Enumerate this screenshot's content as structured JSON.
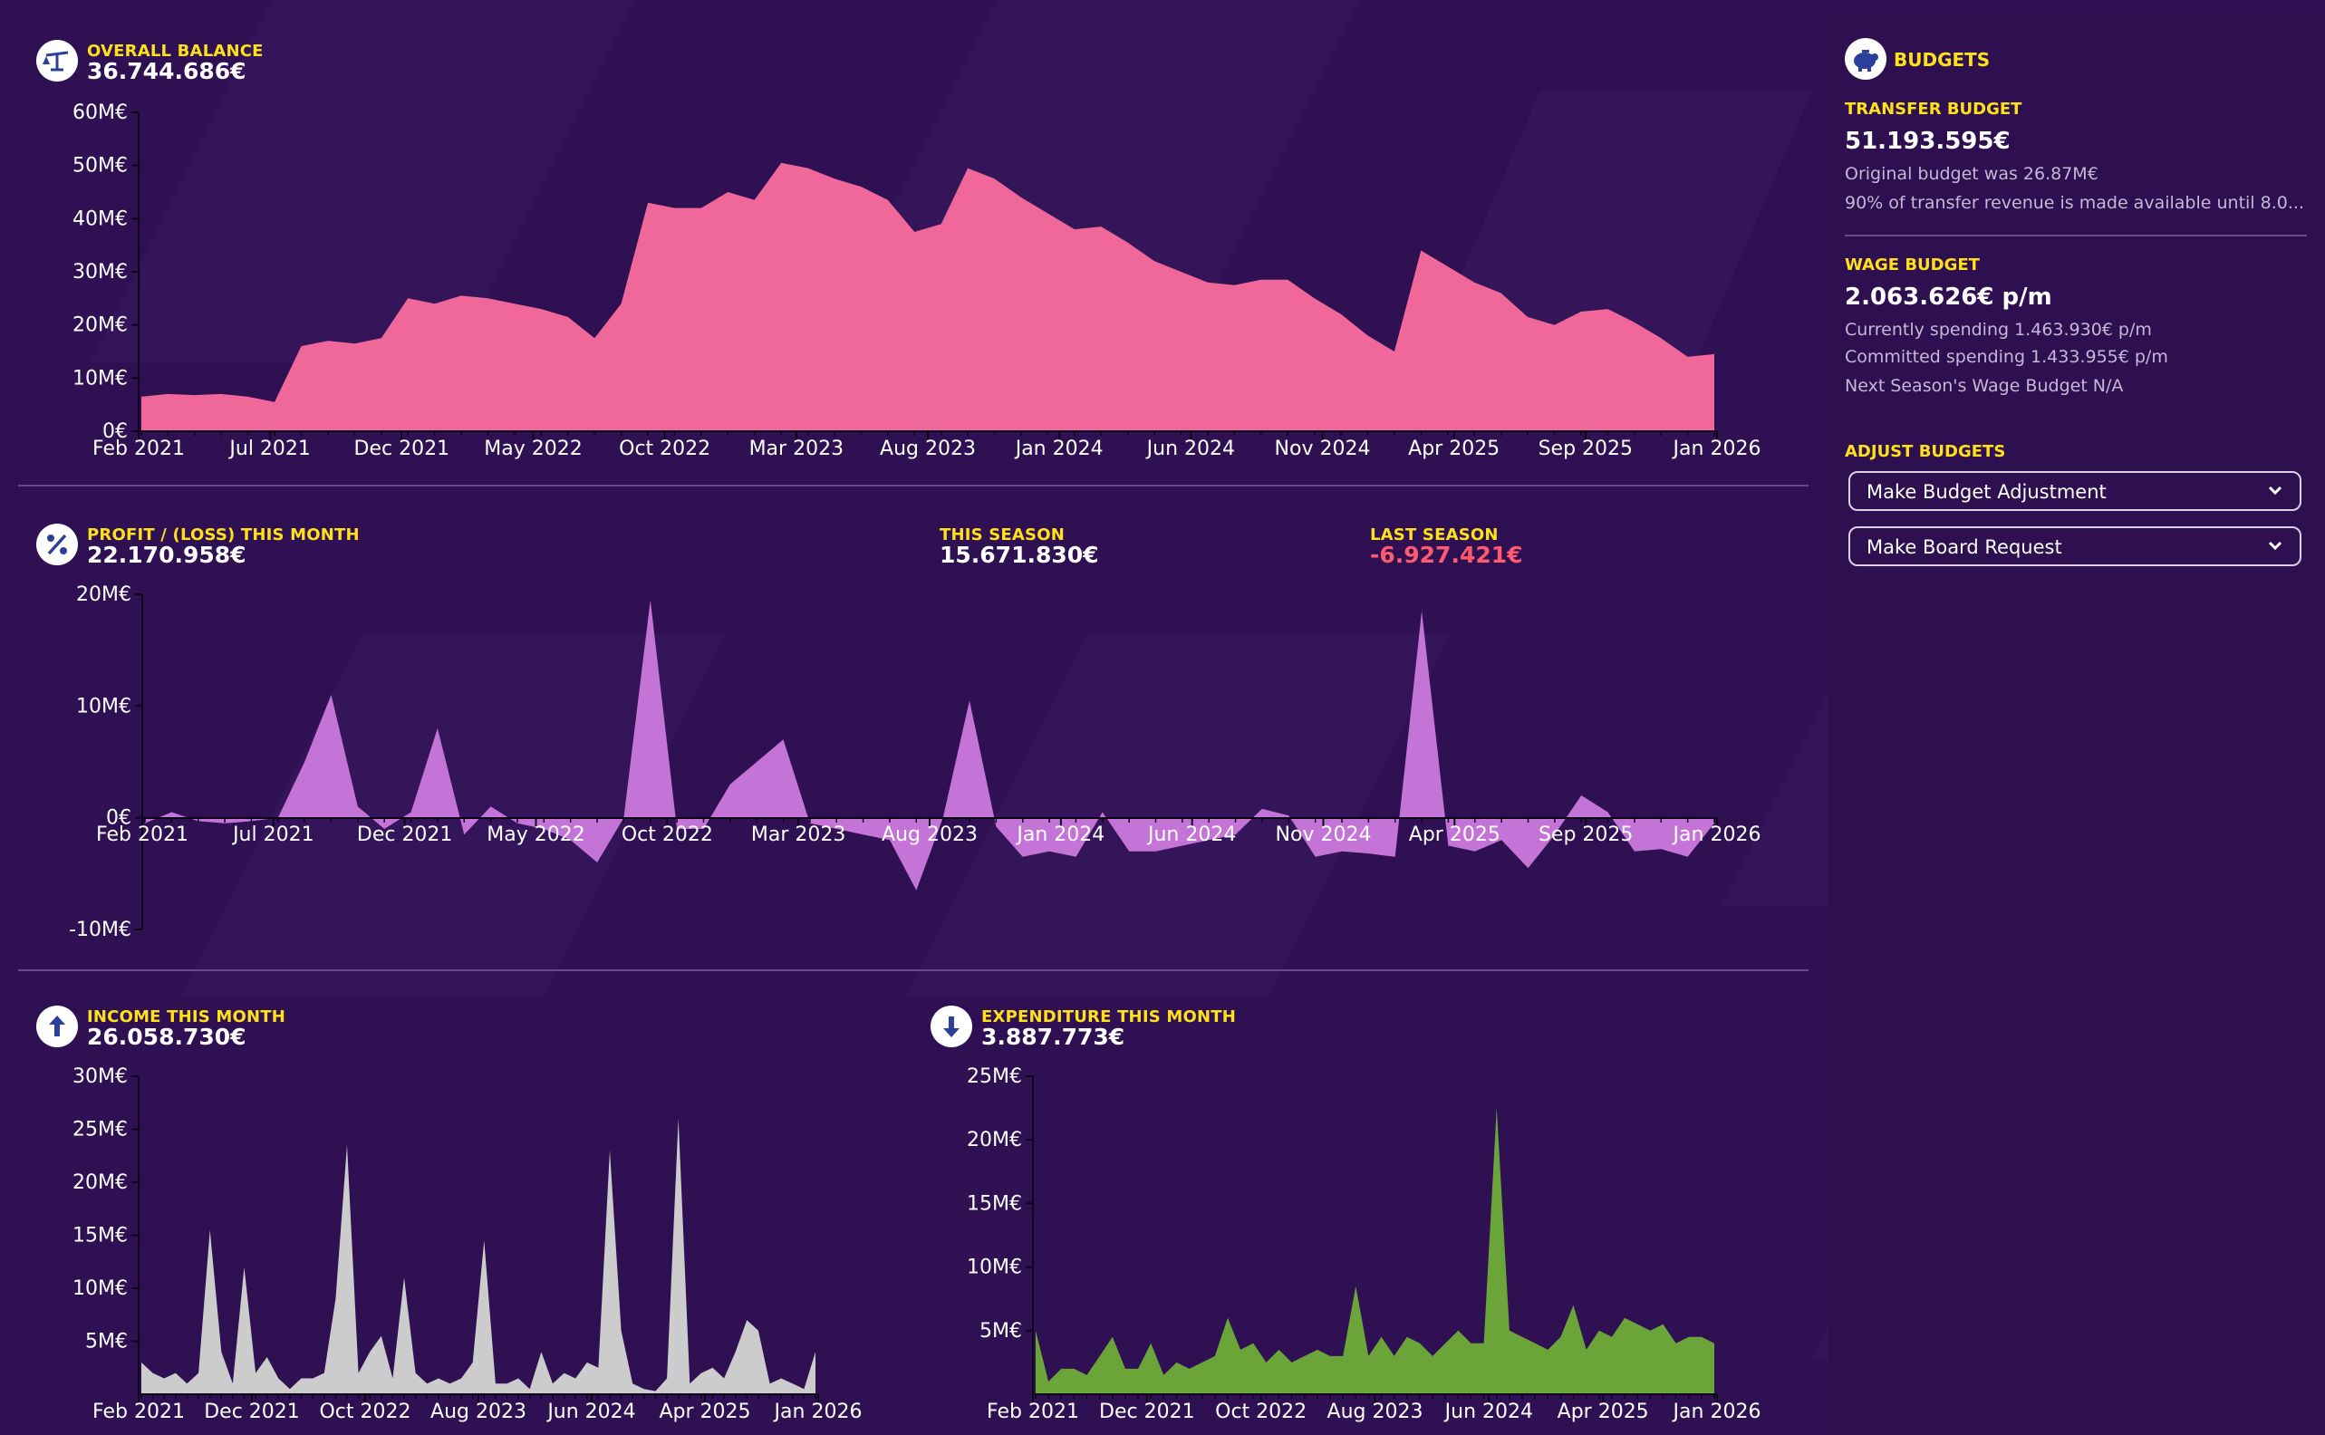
{
  "colors": {
    "background": "#2f1153",
    "label_yellow": "#ffe11a",
    "negative_red": "#ff5a6e",
    "balance_fill": "#f0679a",
    "profit_fill": "#c474d6",
    "income_fill": "#cccccc",
    "expenditure_fill": "#6ba53a"
  },
  "balance": {
    "label": "OVERALL BALANCE",
    "value": "36.744.686€",
    "icon": "balance-scale-icon"
  },
  "profit": {
    "label": "PROFIT / (LOSS) THIS MONTH",
    "value": "22.170.958€",
    "icon": "percent-icon",
    "this_season_label": "THIS SEASON",
    "this_season_value": "15.671.830€",
    "last_season_label": "LAST SEASON",
    "last_season_value": "-6.927.421€"
  },
  "income": {
    "label": "INCOME THIS MONTH",
    "value": "26.058.730€",
    "icon": "arrow-up-icon"
  },
  "expenditure": {
    "label": "EXPENDITURE THIS MONTH",
    "value": "3.887.773€",
    "icon": "arrow-down-icon"
  },
  "budgets": {
    "title": "BUDGETS",
    "icon": "piggy-bank-icon",
    "transfer_label": "TRANSFER BUDGET",
    "transfer_value": "51.193.595€",
    "transfer_original": "Original budget was 26.87M€",
    "transfer_note": "90% of transfer revenue is made available until 8.0...",
    "wage_label": "WAGE BUDGET",
    "wage_value": "2.063.626€ p/m",
    "wage_current": "Currently spending 1.463.930€ p/m",
    "wage_committed": "Committed spending 1.433.955€ p/m",
    "wage_next": "Next Season's Wage Budget N/A",
    "adjust_label": "ADJUST BUDGETS",
    "adjust_button": "Make Budget Adjustment",
    "board_button": "Make Board Request"
  },
  "chart_data": [
    {
      "id": "balance",
      "type": "area",
      "title": "OVERALL BALANCE",
      "xlabel": "",
      "ylabel": "",
      "x_ticks": [
        "Feb 2021",
        "Jul 2021",
        "Dec 2021",
        "May 2022",
        "Oct 2022",
        "Mar 2023",
        "Aug 2023",
        "Jan 2024",
        "Jun 2024",
        "Nov 2024",
        "Apr 2025",
        "Sep 2025",
        "Jan 2026"
      ],
      "y_ticks": [
        "0€",
        "10M€",
        "20M€",
        "30M€",
        "40M€",
        "50M€",
        "60M€"
      ],
      "ylim": [
        0,
        60
      ],
      "unit": "M€",
      "x_start": "Feb 2021",
      "x_end": "Jan 2026",
      "values": [
        6.5,
        7,
        6.8,
        7,
        6.5,
        5.5,
        16,
        17,
        16.5,
        17.5,
        25,
        24,
        25.5,
        25,
        24,
        23,
        21.5,
        17.5,
        24,
        43,
        42,
        42,
        45,
        43.5,
        50.5,
        49.5,
        47.5,
        46,
        43.5,
        37.5,
        39,
        49.5,
        47.5,
        44,
        41,
        38,
        38.5,
        35.5,
        32,
        30,
        28,
        27.5,
        28.5,
        28.5,
        25,
        22,
        18,
        15,
        34,
        31,
        28,
        26,
        21.5,
        20,
        22.5,
        23,
        20.5,
        17.5,
        14,
        14.5
      ]
    },
    {
      "id": "profit",
      "type": "area",
      "title": "PROFIT / (LOSS) THIS MONTH",
      "xlabel": "",
      "ylabel": "",
      "x_ticks": [
        "Feb 2021",
        "Jul 2021",
        "Dec 2021",
        "May 2022",
        "Oct 2022",
        "Mar 2023",
        "Aug 2023",
        "Jan 2024",
        "Jun 2024",
        "Nov 2024",
        "Apr 2025",
        "Sep 2025",
        "Jan 2026"
      ],
      "y_ticks": [
        "-10M€",
        "0€",
        "10M€",
        "20M€"
      ],
      "ylim": [
        -10,
        20
      ],
      "unit": "M€",
      "x_start": "Feb 2021",
      "x_end": "Jan 2026",
      "values": [
        -0.5,
        0.5,
        -0.3,
        -0.5,
        -0.3,
        0,
        5,
        11,
        1,
        -1,
        0.5,
        8,
        -1.5,
        1,
        -0.5,
        -1,
        -2,
        -4,
        0,
        19.5,
        -1,
        -1,
        3,
        5,
        7,
        -0.5,
        -1,
        -1.5,
        -2,
        -6.5,
        0,
        10.5,
        -0.8,
        -3.5,
        -3,
        -3.5,
        0.5,
        -3,
        -3,
        -2.5,
        -2,
        -1.5,
        0.8,
        0.2,
        -3.5,
        -3,
        -3.2,
        -3.5,
        18.5,
        -2.5,
        -3,
        -2,
        -4.5,
        -1.5,
        2,
        0.5,
        -3,
        -2.8,
        -3.5,
        -0.5
      ]
    },
    {
      "id": "income",
      "type": "area",
      "title": "INCOME THIS MONTH",
      "xlabel": "",
      "ylabel": "",
      "x_ticks": [
        "Feb 2021",
        "Dec 2021",
        "Oct 2022",
        "Aug 2023",
        "Jun 2024",
        "Apr 2025",
        "Jan 2026"
      ],
      "y_ticks": [
        "5M€",
        "10M€",
        "15M€",
        "20M€",
        "25M€",
        "30M€"
      ],
      "ylim": [
        0,
        30
      ],
      "unit": "M€",
      "x_start": "Feb 2021",
      "x_end": "Jan 2026",
      "values": [
        3,
        2,
        1.5,
        2,
        1,
        2,
        15.5,
        4,
        1,
        12,
        2,
        3.5,
        1.5,
        0.5,
        1.5,
        1.5,
        2,
        9,
        23.5,
        2,
        4,
        5.5,
        1.5,
        11,
        2,
        1,
        1.5,
        1,
        1.5,
        3,
        14.5,
        1,
        1,
        1.5,
        0.5,
        4,
        1,
        2,
        1.5,
        3,
        2.5,
        23,
        6,
        1,
        0.5,
        0.3,
        1.5,
        26,
        1,
        2,
        2.5,
        1.5,
        4,
        7,
        6,
        1,
        1.5,
        1,
        0.5,
        4
      ]
    },
    {
      "id": "expenditure",
      "type": "area",
      "title": "EXPENDITURE THIS MONTH",
      "xlabel": "",
      "ylabel": "",
      "x_ticks": [
        "Feb 2021",
        "Dec 2021",
        "Oct 2022",
        "Aug 2023",
        "Jun 2024",
        "Apr 2025",
        "Jan 2026"
      ],
      "y_ticks": [
        "5M€",
        "10M€",
        "15M€",
        "20M€",
        "25M€"
      ],
      "ylim": [
        0,
        25
      ],
      "unit": "M€",
      "x_start": "Feb 2021",
      "x_end": "Jan 2026",
      "values": [
        5,
        1,
        2,
        2,
        1.5,
        3,
        4.5,
        2,
        2,
        4,
        1.5,
        2.5,
        2,
        2.5,
        3,
        6,
        3.5,
        4,
        2.5,
        3.5,
        2.5,
        3,
        3.5,
        3,
        3,
        8.5,
        3,
        4.5,
        3,
        4.5,
        4,
        3,
        4,
        5,
        4,
        4,
        22.5,
        5,
        4.5,
        4,
        3.5,
        4.5,
        7,
        3.5,
        5,
        4.5,
        6,
        5.5,
        5,
        5.5,
        4,
        4.5,
        4.5,
        4
      ]
    }
  ]
}
